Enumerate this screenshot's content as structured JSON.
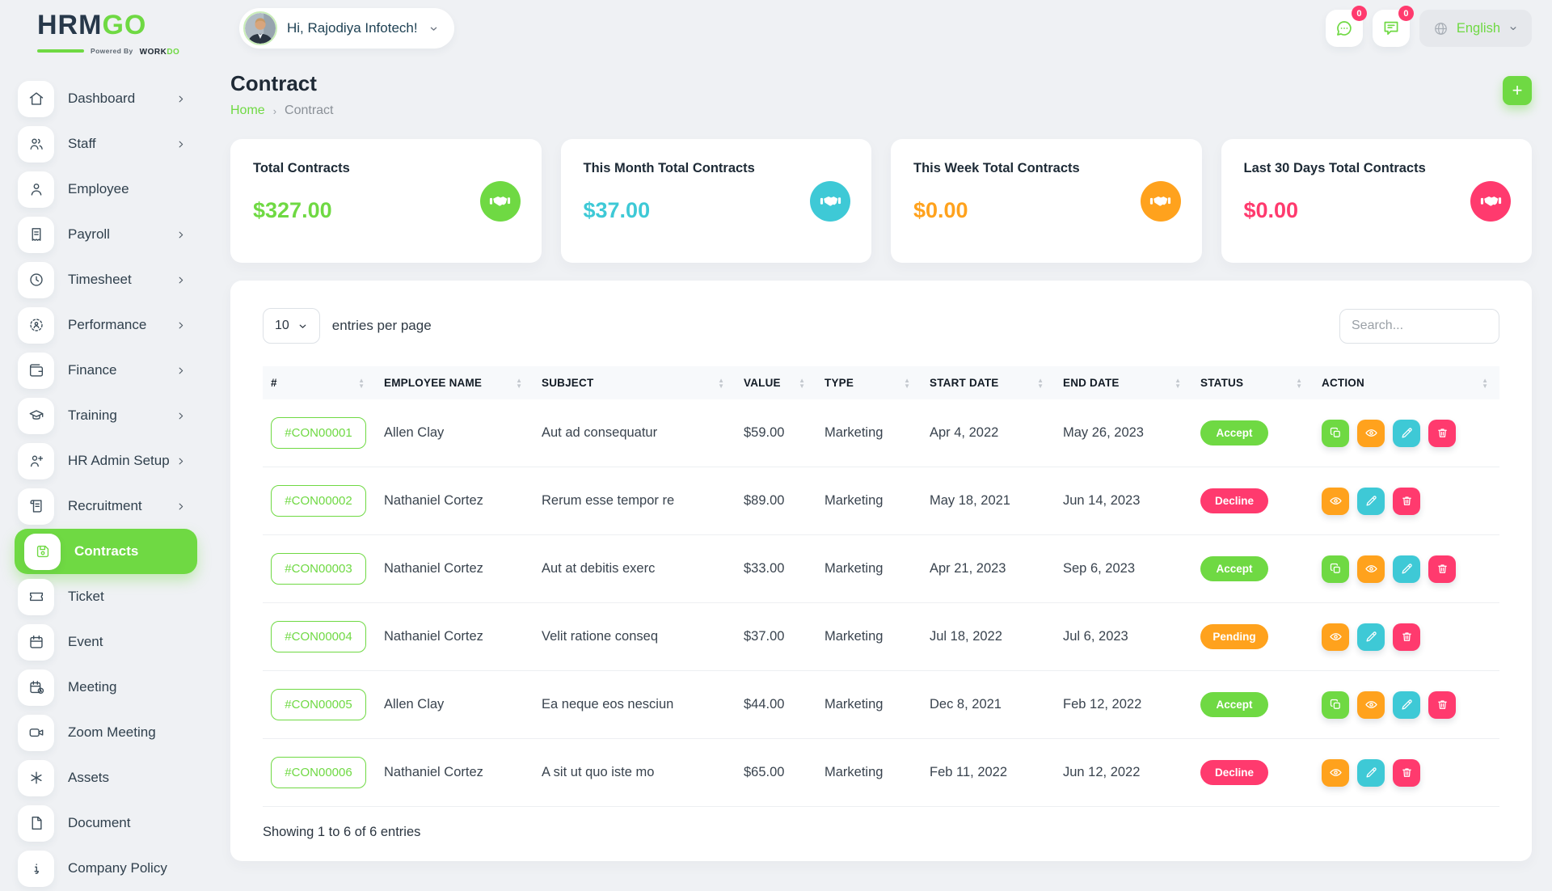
{
  "brand": {
    "logo_primary": "HRM",
    "logo_accent": "GO",
    "tagline_prefix": "Powered By",
    "tagline_brand": "WORK",
    "tagline_brand_accent": "DO"
  },
  "header": {
    "greeting": "Hi, Rajodiya Infotech!",
    "messages_badge": "0",
    "notifications_badge": "0",
    "language": "English"
  },
  "page": {
    "title": "Contract",
    "breadcrumb": {
      "home": "Home",
      "separator": "›",
      "current": "Contract"
    },
    "add_button_label": "+"
  },
  "stats": [
    {
      "title": "Total Contracts",
      "value": "$327.00",
      "color": "#6fd943"
    },
    {
      "title": "This Month Total Contracts",
      "value": "$37.00",
      "color": "#3ec9d6"
    },
    {
      "title": "This Week Total Contracts",
      "value": "$0.00",
      "color": "#ffa21d"
    },
    {
      "title": "Last 30 Days Total Contracts",
      "value": "$0.00",
      "color": "#ff3a6e"
    }
  ],
  "sidebar": {
    "items": [
      {
        "label": "Dashboard",
        "icon": "home-icon",
        "chevron": true,
        "active": false
      },
      {
        "label": "Staff",
        "icon": "staff-icon",
        "chevron": true,
        "active": false
      },
      {
        "label": "Employee",
        "icon": "employee-icon",
        "chevron": false,
        "active": false
      },
      {
        "label": "Payroll",
        "icon": "payroll-icon",
        "chevron": true,
        "active": false
      },
      {
        "label": "Timesheet",
        "icon": "timesheet-icon",
        "chevron": true,
        "active": false
      },
      {
        "label": "Performance",
        "icon": "performance-icon",
        "chevron": true,
        "active": false
      },
      {
        "label": "Finance",
        "icon": "finance-icon",
        "chevron": true,
        "active": false
      },
      {
        "label": "Training",
        "icon": "training-icon",
        "chevron": true,
        "active": false
      },
      {
        "label": "HR Admin Setup",
        "icon": "hr-admin-icon",
        "chevron": true,
        "active": false
      },
      {
        "label": "Recruitment",
        "icon": "recruitment-icon",
        "chevron": true,
        "active": false
      },
      {
        "label": "Contracts",
        "icon": "contracts-icon",
        "chevron": false,
        "active": true
      },
      {
        "label": "Ticket",
        "icon": "ticket-icon",
        "chevron": false,
        "active": false
      },
      {
        "label": "Event",
        "icon": "event-icon",
        "chevron": false,
        "active": false
      },
      {
        "label": "Meeting",
        "icon": "meeting-icon",
        "chevron": false,
        "active": false
      },
      {
        "label": "Zoom Meeting",
        "icon": "zoom-meeting-icon",
        "chevron": false,
        "active": false
      },
      {
        "label": "Assets",
        "icon": "assets-icon",
        "chevron": false,
        "active": false
      },
      {
        "label": "Document",
        "icon": "document-icon",
        "chevron": false,
        "active": false
      },
      {
        "label": "Company Policy",
        "icon": "company-policy-icon",
        "chevron": false,
        "active": false
      }
    ]
  },
  "table": {
    "page_size": "10",
    "entries_label": "entries per page",
    "search_placeholder": "Search...",
    "columns": [
      "#",
      "EMPLOYEE NAME",
      "SUBJECT",
      "VALUE",
      "TYPE",
      "START DATE",
      "END DATE",
      "STATUS",
      "ACTION"
    ],
    "status_colors": {
      "Accept": "#6fd943",
      "Decline": "#ff3a6e",
      "Pending": "#ffa21d"
    },
    "action_colors": {
      "duplicate": "#6fd943",
      "view": "#ffa21d",
      "edit": "#3ec9d6",
      "delete": "#ff3a6e"
    },
    "rows": [
      {
        "id": "#CON00001",
        "employee": "Allen Clay",
        "subject": "Aut ad consequatur",
        "value": "$59.00",
        "type": "Marketing",
        "start": "Apr 4, 2022",
        "end": "May 26, 2023",
        "status": "Accept",
        "actions": [
          "duplicate",
          "view",
          "edit",
          "delete"
        ]
      },
      {
        "id": "#CON00002",
        "employee": "Nathaniel Cortez",
        "subject": "Rerum esse tempor re",
        "value": "$89.00",
        "type": "Marketing",
        "start": "May 18, 2021",
        "end": "Jun 14, 2023",
        "status": "Decline",
        "actions": [
          "view",
          "edit",
          "delete"
        ]
      },
      {
        "id": "#CON00003",
        "employee": "Nathaniel Cortez",
        "subject": "Aut at debitis exerc",
        "value": "$33.00",
        "type": "Marketing",
        "start": "Apr 21, 2023",
        "end": "Sep 6, 2023",
        "status": "Accept",
        "actions": [
          "duplicate",
          "view",
          "edit",
          "delete"
        ]
      },
      {
        "id": "#CON00004",
        "employee": "Nathaniel Cortez",
        "subject": "Velit ratione conseq",
        "value": "$37.00",
        "type": "Marketing",
        "start": "Jul 18, 2022",
        "end": "Jul 6, 2023",
        "status": "Pending",
        "actions": [
          "view",
          "edit",
          "delete"
        ]
      },
      {
        "id": "#CON00005",
        "employee": "Allen Clay",
        "subject": "Ea neque eos nesciun",
        "value": "$44.00",
        "type": "Marketing",
        "start": "Dec 8, 2021",
        "end": "Feb 12, 2022",
        "status": "Accept",
        "actions": [
          "duplicate",
          "view",
          "edit",
          "delete"
        ]
      },
      {
        "id": "#CON00006",
        "employee": "Nathaniel Cortez",
        "subject": "A sit ut quo iste mo",
        "value": "$65.00",
        "type": "Marketing",
        "start": "Feb 11, 2022",
        "end": "Jun 12, 2022",
        "status": "Decline",
        "actions": [
          "view",
          "edit",
          "delete"
        ]
      }
    ],
    "footer": "Showing 1 to 6 of 6 entries"
  },
  "colors": {
    "primary": "#6fd943",
    "info": "#3ec9d6",
    "warning": "#ffa21d",
    "danger": "#ff3a6e"
  }
}
